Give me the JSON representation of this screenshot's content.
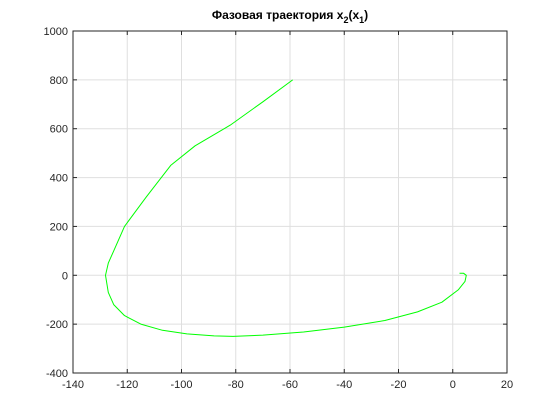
{
  "chart_data": {
    "type": "line",
    "title_main": "Фазовая траектория x",
    "title_sub_outer": "2",
    "title_paren_open": "(x",
    "title_sub_inner": "1",
    "title_paren_close": ")",
    "xlabel": "",
    "ylabel": "",
    "xlim": [
      -140,
      20
    ],
    "ylim": [
      -400,
      1000
    ],
    "xticks": [
      -140,
      -120,
      -100,
      -80,
      -60,
      -40,
      -20,
      0,
      20
    ],
    "yticks": [
      -400,
      -200,
      0,
      200,
      400,
      600,
      800,
      1000
    ],
    "grid": true,
    "line_color": "#00ff00",
    "series": [
      {
        "x": [
          -59,
          -70,
          -82,
          -95,
          -104,
          -113,
          -121,
          -125,
          -127,
          -128,
          -127,
          -125,
          -121,
          -115,
          -107,
          -98,
          -88,
          -81,
          -70,
          -55,
          -40,
          -25,
          -13,
          -4,
          2,
          4.5,
          5,
          4,
          2.5
        ],
        "y": [
          800,
          710,
          615,
          530,
          450,
          320,
          200,
          100,
          50,
          0,
          -70,
          -120,
          -165,
          -200,
          -225,
          -240,
          -248,
          -250,
          -245,
          -232,
          -212,
          -185,
          -150,
          -110,
          -60,
          -25,
          0,
          8,
          8
        ]
      }
    ]
  },
  "colors": {
    "axis": "#262626",
    "grid": "#dfdfdf",
    "background": "#ffffff"
  }
}
